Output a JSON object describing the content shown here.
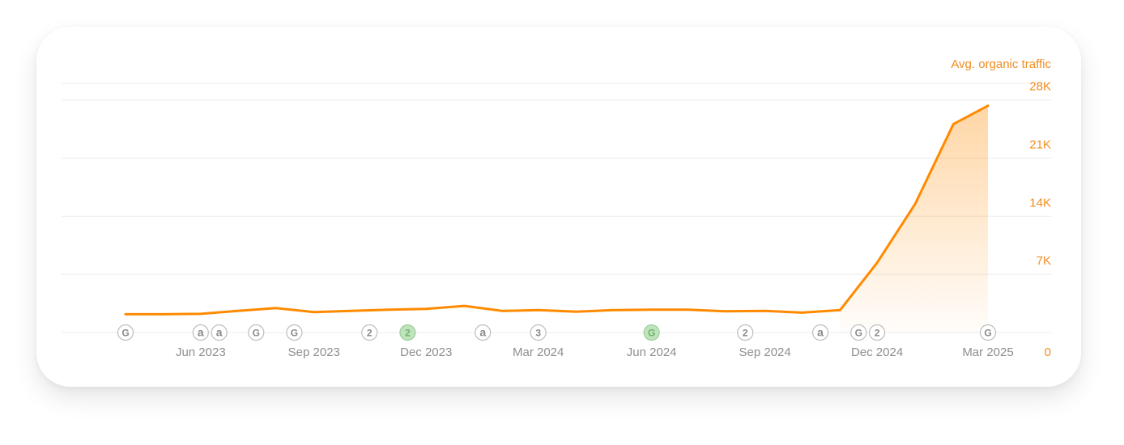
{
  "colors": {
    "line": "#FF8A00",
    "accent_text": "#F28C1E",
    "tick_text": "#8E8E93",
    "grid": "#ECECEC",
    "marker_stroke": "#BDBDBD",
    "marker_text": "#8A8A8A",
    "marker_highlight_fill": "#BFE3BD",
    "marker_highlight_stroke": "#9CCF98"
  },
  "chart_data": {
    "type": "area",
    "title": "",
    "ylabel": "Avg. organic traffic",
    "xlabel": "",
    "ylim": [
      0,
      30000
    ],
    "y_ticks": [
      {
        "value": 0,
        "label": "0"
      },
      {
        "value": 7000,
        "label": "7K"
      },
      {
        "value": 14000,
        "label": "14K"
      },
      {
        "value": 21000,
        "label": "21K"
      },
      {
        "value": 28000,
        "label": "28K"
      }
    ],
    "x_ticks": [
      {
        "date": "2023-06-01",
        "label": "Jun 2023"
      },
      {
        "date": "2023-09-01",
        "label": "Sep 2023"
      },
      {
        "date": "2023-12-01",
        "label": "Dec 2023"
      },
      {
        "date": "2024-03-01",
        "label": "Mar 2024"
      },
      {
        "date": "2024-06-01",
        "label": "Jun 2024"
      },
      {
        "date": "2024-09-01",
        "label": "Sep 2024"
      },
      {
        "date": "2024-12-01",
        "label": "Dec 2024"
      },
      {
        "date": "2025-03-01",
        "label": "Mar 2025"
      }
    ],
    "grid": true,
    "y_axis_position": "right",
    "series": [
      {
        "values": [
          {
            "x": "2023-04-01",
            "y": 2200
          },
          {
            "x": "2023-05-01",
            "y": 2200
          },
          {
            "x": "2023-06-01",
            "y": 2250
          },
          {
            "x": "2023-07-01",
            "y": 2600
          },
          {
            "x": "2023-08-01",
            "y": 2950
          },
          {
            "x": "2023-09-01",
            "y": 2450
          },
          {
            "x": "2023-10-01",
            "y": 2600
          },
          {
            "x": "2023-11-01",
            "y": 2750
          },
          {
            "x": "2023-12-01",
            "y": 2850
          },
          {
            "x": "2024-01-01",
            "y": 3200
          },
          {
            "x": "2024-02-01",
            "y": 2600
          },
          {
            "x": "2024-03-01",
            "y": 2700
          },
          {
            "x": "2024-04-01",
            "y": 2500
          },
          {
            "x": "2024-05-01",
            "y": 2700
          },
          {
            "x": "2024-06-01",
            "y": 2750
          },
          {
            "x": "2024-07-01",
            "y": 2750
          },
          {
            "x": "2024-08-01",
            "y": 2550
          },
          {
            "x": "2024-09-01",
            "y": 2600
          },
          {
            "x": "2024-10-01",
            "y": 2400
          },
          {
            "x": "2024-11-01",
            "y": 2700
          },
          {
            "x": "2024-12-01",
            "y": 8400
          },
          {
            "x": "2025-01-01",
            "y": 15500
          },
          {
            "x": "2025-02-01",
            "y": 25100
          },
          {
            "x": "2025-03-01",
            "y": 27300
          }
        ]
      }
    ],
    "event_markers": [
      {
        "x": "2023-04-01",
        "glyph": "G",
        "highlight": false
      },
      {
        "x": "2023-06-01",
        "glyph": "a",
        "highlight": false
      },
      {
        "x": "2023-06-16",
        "glyph": "a",
        "highlight": false
      },
      {
        "x": "2023-07-16",
        "glyph": "G",
        "highlight": false
      },
      {
        "x": "2023-08-16",
        "glyph": "G",
        "highlight": false
      },
      {
        "x": "2023-10-16",
        "glyph": "2",
        "highlight": false
      },
      {
        "x": "2023-11-16",
        "glyph": "2",
        "highlight": true
      },
      {
        "x": "2024-01-16",
        "glyph": "a",
        "highlight": false
      },
      {
        "x": "2024-03-01",
        "glyph": "3",
        "highlight": false
      },
      {
        "x": "2024-06-01",
        "glyph": "G",
        "highlight": true
      },
      {
        "x": "2024-08-16",
        "glyph": "2",
        "highlight": false
      },
      {
        "x": "2024-10-16",
        "glyph": "a",
        "highlight": false
      },
      {
        "x": "2024-11-16",
        "glyph": "G",
        "highlight": false
      },
      {
        "x": "2024-12-01",
        "glyph": "2",
        "highlight": false
      },
      {
        "x": "2025-03-01",
        "glyph": "G",
        "highlight": false
      }
    ]
  }
}
